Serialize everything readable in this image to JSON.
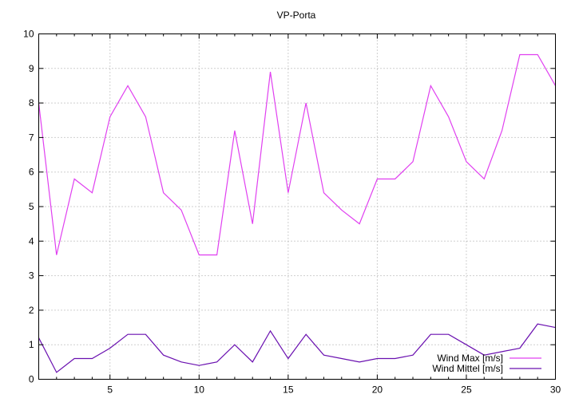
{
  "chart_data": {
    "type": "line",
    "title": "VP-Porta",
    "xlabel": "",
    "ylabel": "",
    "xlim": [
      1,
      30
    ],
    "ylim": [
      0,
      10
    ],
    "x_ticks": [
      5,
      10,
      15,
      20,
      25,
      30
    ],
    "y_ticks": [
      0,
      1,
      2,
      3,
      4,
      5,
      6,
      7,
      8,
      9,
      10
    ],
    "grid": true,
    "legend_position": "bottom-right",
    "x": [
      1,
      2,
      3,
      4,
      5,
      6,
      7,
      8,
      9,
      10,
      11,
      12,
      13,
      14,
      15,
      16,
      17,
      18,
      19,
      20,
      21,
      22,
      23,
      24,
      25,
      26,
      27,
      28,
      29,
      30
    ],
    "series": [
      {
        "name": "Wind Max [m/s]",
        "color": "#e040f0",
        "values": [
          8.0,
          3.6,
          5.8,
          5.4,
          7.6,
          8.5,
          7.6,
          5.4,
          4.9,
          3.6,
          3.6,
          7.2,
          4.5,
          8.9,
          5.4,
          8.0,
          5.4,
          4.9,
          4.5,
          5.8,
          5.8,
          6.3,
          8.5,
          7.6,
          6.3,
          5.8,
          7.2,
          9.4,
          9.4,
          8.5
        ]
      },
      {
        "name": "Wind Mittel [m/s]",
        "color": "#6a10b0",
        "values": [
          1.2,
          0.2,
          0.6,
          0.6,
          0.9,
          1.3,
          1.3,
          0.7,
          0.5,
          0.4,
          0.5,
          1.0,
          0.5,
          1.4,
          0.6,
          1.3,
          0.7,
          0.6,
          0.5,
          0.6,
          0.6,
          0.7,
          1.3,
          1.3,
          1.0,
          0.7,
          0.8,
          0.9,
          1.6,
          1.5
        ]
      }
    ]
  }
}
